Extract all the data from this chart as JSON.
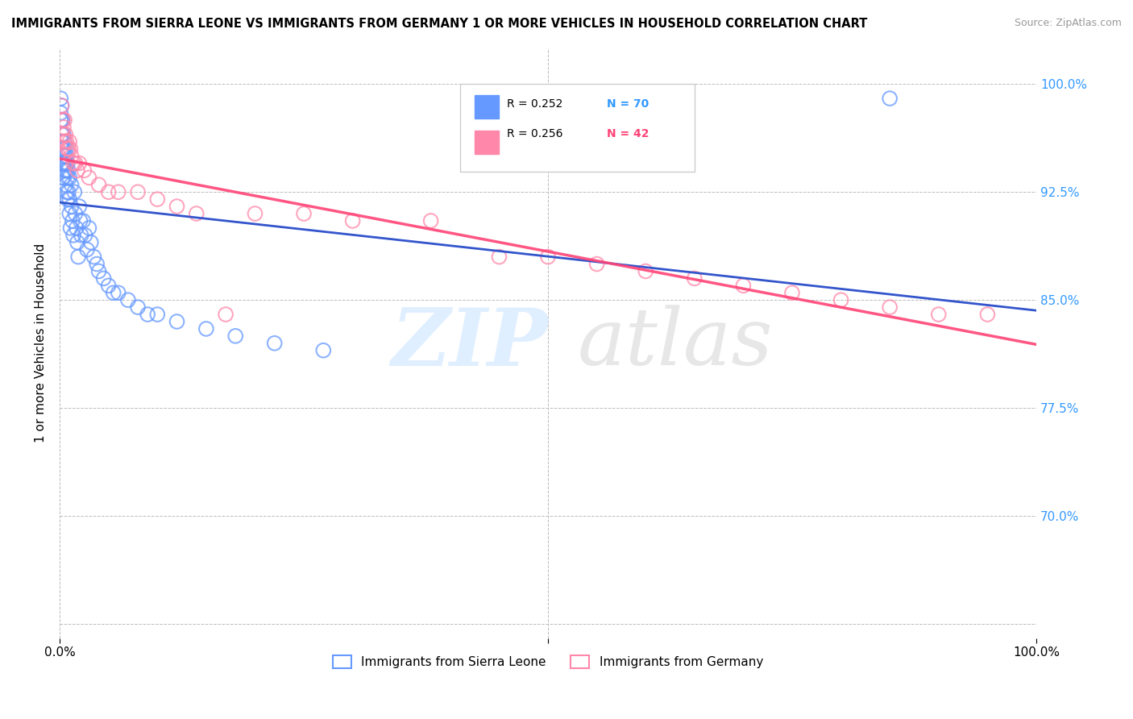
{
  "title": "IMMIGRANTS FROM SIERRA LEONE VS IMMIGRANTS FROM GERMANY 1 OR MORE VEHICLES IN HOUSEHOLD CORRELATION CHART",
  "source": "Source: ZipAtlas.com",
  "ylabel": "1 or more Vehicles in Household",
  "xmin": 0.0,
  "xmax": 1.0,
  "ymin": 0.615,
  "ymax": 1.025,
  "yticks": [
    0.625,
    0.7,
    0.775,
    0.85,
    0.925,
    1.0
  ],
  "ytick_right_labels": [
    "",
    "70.0%",
    "77.5%",
    "85.0%",
    "92.5%",
    "100.0%"
  ],
  "xticks": [
    0.0,
    0.5,
    1.0
  ],
  "xtick_labels": [
    "0.0%",
    "",
    "100.0%"
  ],
  "legend_r1": "R = 0.252",
  "legend_n1": "N = 70",
  "legend_r2": "R = 0.256",
  "legend_n2": "N = 42",
  "color_sl": "#6699ff",
  "color_de": "#ff88aa",
  "trendline_color_sl": "#3355cc",
  "trendline_color_de": "#ff4477",
  "sierra_leone_x": [
    0.001,
    0.001,
    0.001,
    0.002,
    0.002,
    0.002,
    0.002,
    0.002,
    0.002,
    0.003,
    0.003,
    0.003,
    0.003,
    0.003,
    0.004,
    0.004,
    0.004,
    0.004,
    0.005,
    0.005,
    0.005,
    0.006,
    0.006,
    0.006,
    0.007,
    0.007,
    0.007,
    0.008,
    0.008,
    0.008,
    0.009,
    0.009,
    0.01,
    0.01,
    0.01,
    0.011,
    0.012,
    0.012,
    0.013,
    0.014,
    0.015,
    0.016,
    0.017,
    0.018,
    0.019,
    0.02,
    0.021,
    0.022,
    0.024,
    0.026,
    0.028,
    0.03,
    0.032,
    0.035,
    0.038,
    0.04,
    0.045,
    0.05,
    0.055,
    0.06,
    0.07,
    0.08,
    0.09,
    0.1,
    0.12,
    0.15,
    0.18,
    0.22,
    0.27,
    0.85
  ],
  "sierra_leone_y": [
    0.99,
    0.98,
    0.975,
    0.985,
    0.975,
    0.965,
    0.96,
    0.955,
    0.945,
    0.975,
    0.965,
    0.955,
    0.945,
    0.935,
    0.965,
    0.955,
    0.945,
    0.935,
    0.96,
    0.95,
    0.94,
    0.955,
    0.945,
    0.93,
    0.95,
    0.94,
    0.925,
    0.945,
    0.935,
    0.92,
    0.94,
    0.925,
    0.935,
    0.92,
    0.91,
    0.9,
    0.93,
    0.915,
    0.905,
    0.895,
    0.925,
    0.91,
    0.9,
    0.89,
    0.88,
    0.915,
    0.905,
    0.895,
    0.905,
    0.895,
    0.885,
    0.9,
    0.89,
    0.88,
    0.875,
    0.87,
    0.865,
    0.86,
    0.855,
    0.855,
    0.85,
    0.845,
    0.84,
    0.84,
    0.835,
    0.83,
    0.825,
    0.82,
    0.815,
    0.99
  ],
  "germany_x": [
    0.002,
    0.003,
    0.003,
    0.004,
    0.005,
    0.005,
    0.006,
    0.007,
    0.008,
    0.009,
    0.01,
    0.011,
    0.012,
    0.014,
    0.016,
    0.018,
    0.02,
    0.025,
    0.03,
    0.04,
    0.05,
    0.06,
    0.08,
    0.1,
    0.12,
    0.14,
    0.17,
    0.2,
    0.25,
    0.3,
    0.38,
    0.45,
    0.5,
    0.55,
    0.6,
    0.65,
    0.7,
    0.75,
    0.8,
    0.85,
    0.9,
    0.95
  ],
  "germany_y": [
    0.985,
    0.975,
    0.965,
    0.97,
    0.975,
    0.96,
    0.965,
    0.96,
    0.955,
    0.955,
    0.96,
    0.955,
    0.95,
    0.945,
    0.945,
    0.94,
    0.945,
    0.94,
    0.935,
    0.93,
    0.925,
    0.925,
    0.925,
    0.92,
    0.915,
    0.91,
    0.84,
    0.91,
    0.91,
    0.905,
    0.905,
    0.88,
    0.88,
    0.875,
    0.87,
    0.865,
    0.86,
    0.855,
    0.85,
    0.845,
    0.84,
    0.84
  ],
  "fig_width": 14.06,
  "fig_height": 8.92
}
